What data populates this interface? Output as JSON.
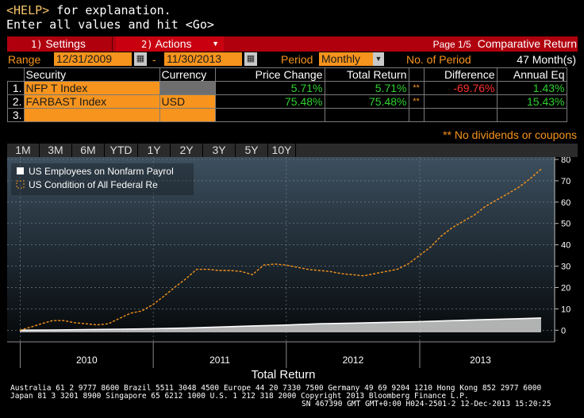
{
  "header": {
    "help_key": "<HELP>",
    "help_text": " for explanation.",
    "enter_text": "Enter all values and hit <Go>"
  },
  "toolbar": {
    "settings_num": "1)",
    "settings_label": "Settings",
    "actions_num": "2)",
    "actions_label": "Actions",
    "page": "Page 1/5",
    "title": "Comparative Return"
  },
  "params": {
    "range_label": "Range",
    "start_date": "12/31/2009",
    "dash": "-",
    "end_date": "11/30/2013",
    "period_label": "Period",
    "period_value": "Monthly",
    "num_period_label": "No. of Period",
    "num_period_value": "47 Month(s)"
  },
  "table": {
    "headers": [
      "Security",
      "Currency",
      "Price Change",
      "Total Return",
      "",
      "Difference",
      "Annual Eq"
    ],
    "rows": [
      {
        "idx": "1.",
        "security": "NFP T Index",
        "currency": "",
        "price_change": "5.71%",
        "total_return": "5.71%",
        "flag": "**",
        "difference": "-69.76%",
        "annual": "1.43%"
      },
      {
        "idx": "2.",
        "security": "FARBAST Index",
        "currency": "USD",
        "price_change": "75.48%",
        "total_return": "75.48%",
        "flag": "**",
        "difference": "",
        "annual": "15.43%"
      },
      {
        "idx": "3.",
        "security": "",
        "currency": "",
        "price_change": "",
        "total_return": "",
        "flag": "",
        "difference": "",
        "annual": ""
      }
    ],
    "note": "** No dividends or coupons"
  },
  "tabs": [
    "1M",
    "3M",
    "6M",
    "YTD",
    "1Y",
    "2Y",
    "3Y",
    "5Y",
    "10Y"
  ],
  "colors": {
    "accent": "#f7941d",
    "toolbar_red": "#b0000e",
    "positive": "#2fd12f",
    "negative": "#ff3030",
    "series1": "#ffffff",
    "series2": "#f7941d"
  },
  "chart_data": {
    "type": "line",
    "title": "",
    "xlabel": "Total Return",
    "ylabel": "",
    "ylim": [
      -1,
      80
    ],
    "yticks": [
      0,
      10,
      20,
      30,
      40,
      50,
      60,
      70,
      80
    ],
    "x_tick_labels": [
      "2010",
      "2011",
      "2012",
      "2013"
    ],
    "grid": true,
    "legend_position": "top-left",
    "series": [
      {
        "name": "US Employees on Nonfarm Payrol",
        "style": "solid",
        "color": "#ffffff",
        "x": [
          "2009-12-31",
          "2010-03-31",
          "2010-06-30",
          "2010-09-30",
          "2010-12-31",
          "2011-03-31",
          "2011-06-30",
          "2011-09-30",
          "2011-12-31",
          "2012-03-31",
          "2012-06-30",
          "2012-09-30",
          "2012-12-31",
          "2013-03-31",
          "2013-06-30",
          "2013-09-30",
          "2013-11-30"
        ],
        "values": [
          0.0,
          0.1,
          0.3,
          0.5,
          0.7,
          1.0,
          1.5,
          2.0,
          2.4,
          3.0,
          3.3,
          3.7,
          4.0,
          4.5,
          5.0,
          5.4,
          5.71
        ]
      },
      {
        "name": "US Condition of All Federal Re",
        "style": "dashed",
        "color": "#f7941d",
        "x": [
          "2009-12-31",
          "2010-01-31",
          "2010-02-28",
          "2010-03-31",
          "2010-04-30",
          "2010-05-31",
          "2010-06-30",
          "2010-07-31",
          "2010-08-31",
          "2010-09-30",
          "2010-10-31",
          "2010-11-30",
          "2010-12-31",
          "2011-01-31",
          "2011-02-28",
          "2011-03-31",
          "2011-04-30",
          "2011-05-31",
          "2011-06-30",
          "2011-07-31",
          "2011-08-31",
          "2011-09-30",
          "2011-10-31",
          "2011-11-30",
          "2011-12-31",
          "2012-01-31",
          "2012-02-29",
          "2012-03-31",
          "2012-04-30",
          "2012-05-31",
          "2012-06-30",
          "2012-07-31",
          "2012-08-31",
          "2012-09-30",
          "2012-10-31",
          "2012-11-30",
          "2012-12-31",
          "2013-01-31",
          "2013-02-28",
          "2013-03-31",
          "2013-04-30",
          "2013-05-31",
          "2013-06-30",
          "2013-07-31",
          "2013-08-31",
          "2013-09-30",
          "2013-10-31",
          "2013-11-30"
        ],
        "values": [
          0.0,
          1.5,
          3.0,
          4.5,
          4.5,
          3.5,
          3.0,
          2.5,
          3.0,
          5.5,
          8.0,
          9.0,
          12.0,
          16.0,
          20.0,
          24.0,
          28.5,
          28.5,
          28.0,
          28.0,
          27.5,
          26.0,
          30.5,
          31.0,
          30.5,
          29.5,
          28.5,
          28.0,
          27.5,
          26.5,
          26.0,
          25.5,
          26.5,
          27.5,
          28.5,
          31.0,
          35.0,
          39.0,
          44.0,
          48.0,
          51.0,
          54.0,
          58.0,
          61.0,
          64.0,
          67.0,
          71.0,
          75.48
        ]
      }
    ]
  }
}
